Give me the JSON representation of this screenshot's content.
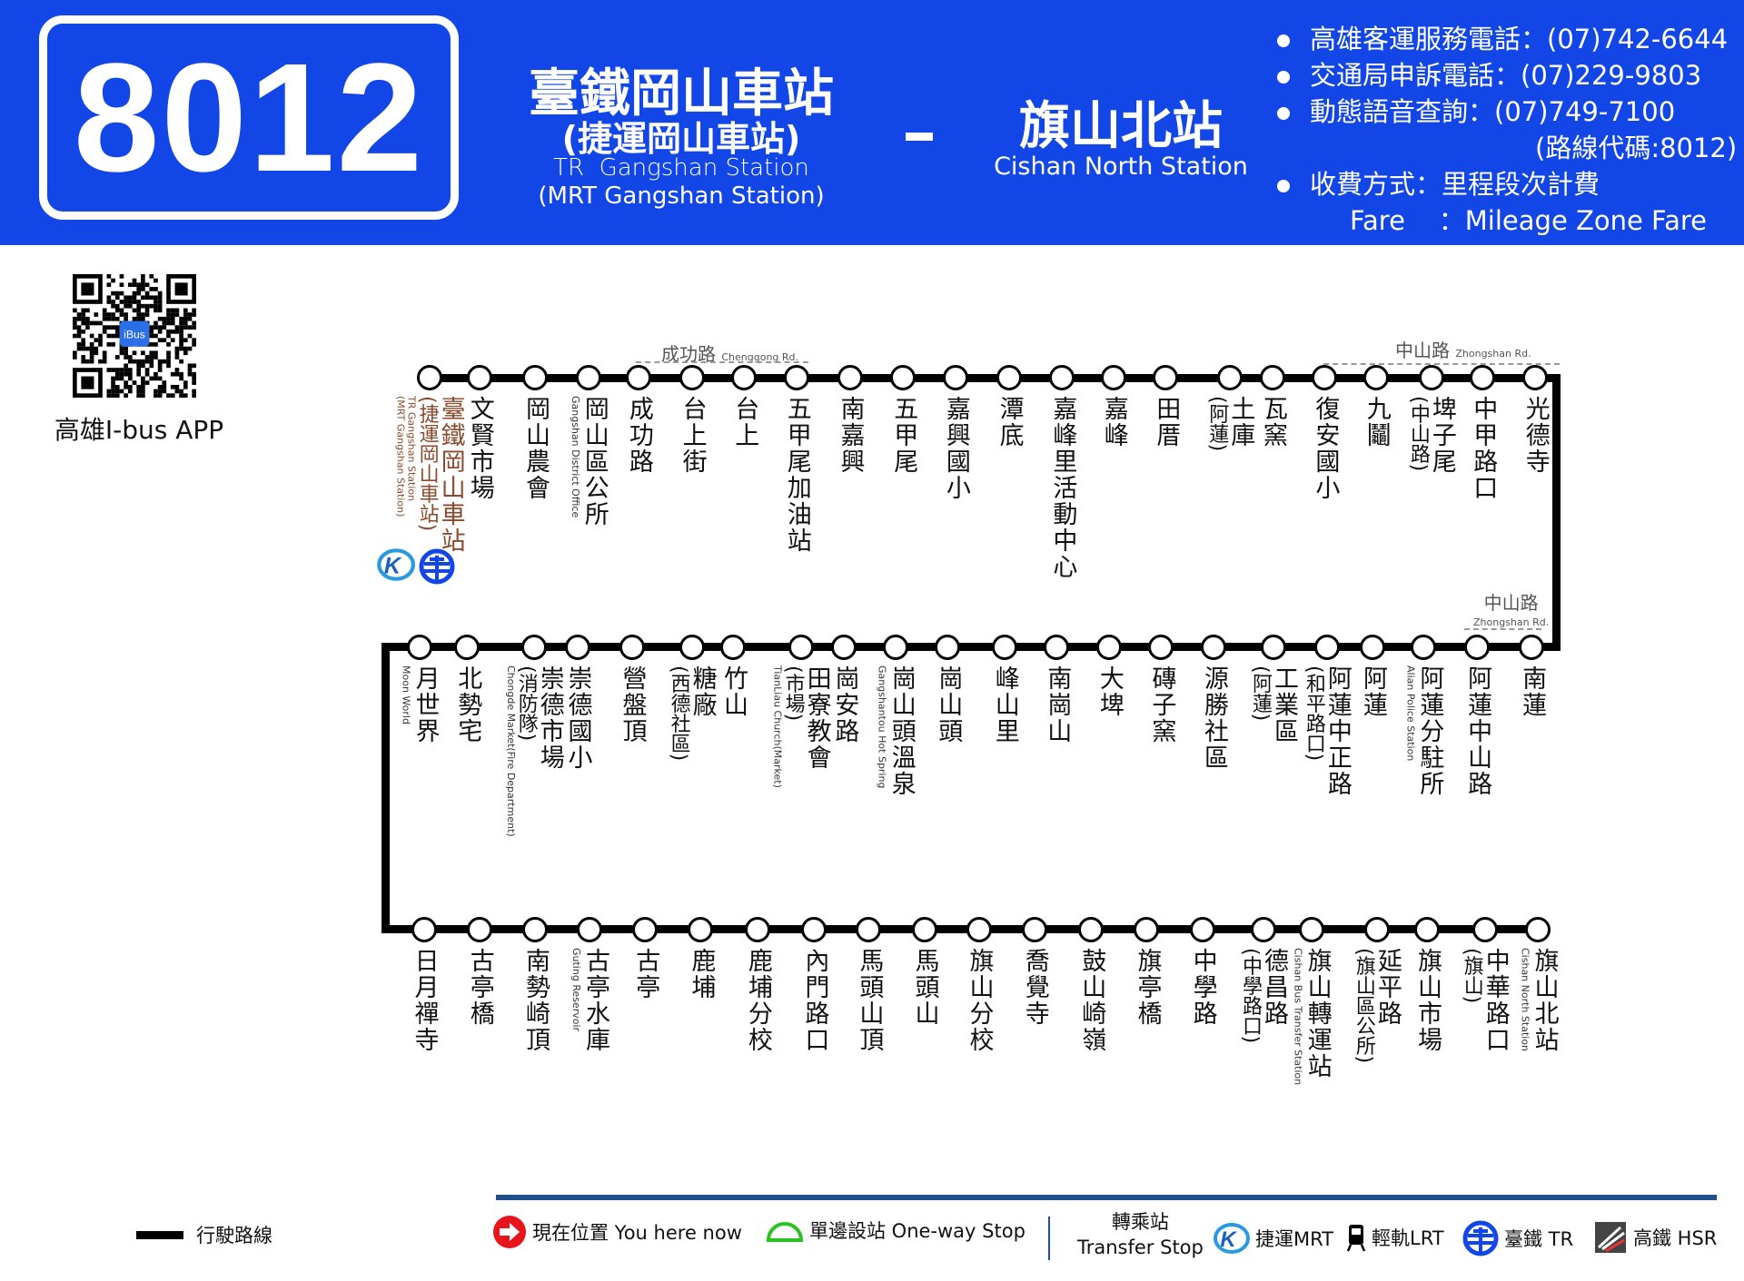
{
  "header": {
    "route_number": "8012",
    "origin_zh": "臺鐵岡山車站",
    "origin_zh_alt": "(捷運岡山車站)",
    "origin_en": "TR  Gangshan Station",
    "origin_en_alt": "(MRT Gangshan Station)",
    "separator": "-",
    "destination_zh": "旗山北站",
    "destination_en": "Cishan North Station",
    "info": [
      "高雄客運服務電話：(07)742-6644",
      "交通局申訴電話：(07)229-9803",
      "動態語音查詢：(07)749-7100",
      "(路線代碼:8012)",
      "收費方式：里程段次計費",
      "Fare    ：Mileage Zone Fare"
    ],
    "color": "#1346e6"
  },
  "app": {
    "label": "高雄I-bus APP",
    "qr_badge": "iBus"
  },
  "roads": [
    {
      "zh": "成功路",
      "en": "Chenggong Rd."
    },
    {
      "zh": "中山路",
      "en": "Zhongshan Rd."
    },
    {
      "zh": "中山路",
      "en": "Zhongshan Rd."
    }
  ],
  "rows": [
    [
      {
        "name": "臺鐵岡山車站",
        "sub": "(捷運岡山車站)",
        "en": "TR Gangshan Station (MRT Gangshan Station)",
        "transfer": [
          "MRT",
          "TR"
        ]
      },
      {
        "name": "文賢市場"
      },
      {
        "name": "岡山農會"
      },
      {
        "name": "岡山區公所",
        "en": "Gangshan District Office"
      },
      {
        "name": "成功路"
      },
      {
        "name": "台上街"
      },
      {
        "name": "台上"
      },
      {
        "name": "五甲尾加油站"
      },
      {
        "name": "南嘉興"
      },
      {
        "name": "五甲尾"
      },
      {
        "name": "嘉興國小"
      },
      {
        "name": "潭底"
      },
      {
        "name": "嘉峰里活動中心"
      },
      {
        "name": "嘉峰"
      },
      {
        "name": "田厝"
      },
      {
        "name": "土庫",
        "sub": "(阿蓮)"
      },
      {
        "name": "瓦窯"
      },
      {
        "name": "復安國小"
      },
      {
        "name": "九鬮"
      },
      {
        "name": "埤子尾",
        "sub": "(中山路)"
      },
      {
        "name": "中甲路口"
      },
      {
        "name": "光德寺"
      }
    ],
    [
      {
        "name": "南蓮"
      },
      {
        "name": "阿蓮中山路"
      },
      {
        "name": "阿蓮分駐所",
        "en": "Alian Police Station"
      },
      {
        "name": "阿蓮"
      },
      {
        "name": "阿蓮中正路",
        "sub": "(和平路口)"
      },
      {
        "name": "工業區",
        "sub": "(阿蓮)"
      },
      {
        "name": "源勝社區"
      },
      {
        "name": "磚子窯"
      },
      {
        "name": "大埤"
      },
      {
        "name": "南崗山"
      },
      {
        "name": "峰山里"
      },
      {
        "name": "崗山頭"
      },
      {
        "name": "崗山頭溫泉",
        "en": "Gangshantou Hot Spring"
      },
      {
        "name": "崗安路"
      },
      {
        "name": "田寮教會",
        "sub": "(市場)",
        "en": "TianLiau Church(Market)"
      },
      {
        "name": "竹山"
      },
      {
        "name": "糖廠",
        "sub": "(西德社區)"
      },
      {
        "name": "營盤頂"
      },
      {
        "name": "崇德國小"
      },
      {
        "name": "崇德市場",
        "sub": "(消防隊)",
        "en": "Chongde Market(Fire Department)"
      },
      {
        "name": "北勢宅"
      },
      {
        "name": "月世界",
        "en": "Moon World"
      }
    ],
    [
      {
        "name": "日月禪寺"
      },
      {
        "name": "古亭橋"
      },
      {
        "name": "南勢崎頂"
      },
      {
        "name": "古亭水庫",
        "en": "Guting Reservoir"
      },
      {
        "name": "古亭"
      },
      {
        "name": "鹿埔"
      },
      {
        "name": "鹿埔分校"
      },
      {
        "name": "內門路口"
      },
      {
        "name": "馬頭山頂"
      },
      {
        "name": "馬頭山"
      },
      {
        "name": "旗山分校"
      },
      {
        "name": "喬覺寺"
      },
      {
        "name": "鼓山崎嶺"
      },
      {
        "name": "旗亭橋"
      },
      {
        "name": "中學路"
      },
      {
        "name": "德昌路",
        "sub": "(中學路口)"
      },
      {
        "name": "旗山轉運站",
        "en": "Cishan Bus Transfer Station"
      },
      {
        "name": "延平路",
        "sub": "(旗山區公所)"
      },
      {
        "name": "旗山市場"
      },
      {
        "name": "中華路口",
        "sub": "(旗山)"
      },
      {
        "name": "旗山北站",
        "en": "Cishan North Station"
      }
    ]
  ],
  "legend": {
    "route_line": "行駛路線",
    "you_here": "現在位置 You here now",
    "one_way": "單邊設站 One-way Stop",
    "transfer_zh": "轉乘站",
    "transfer_en": "Transfer Stop",
    "mrt": "捷運MRT",
    "lrt": "輕軌LRT",
    "tr": "臺鐵 TR",
    "hsr": "高鐵 HSR",
    "colors": {
      "you_here": "#e8141b",
      "one_way": "#2ac21f",
      "transfer_line": "#1f4e8c"
    }
  }
}
